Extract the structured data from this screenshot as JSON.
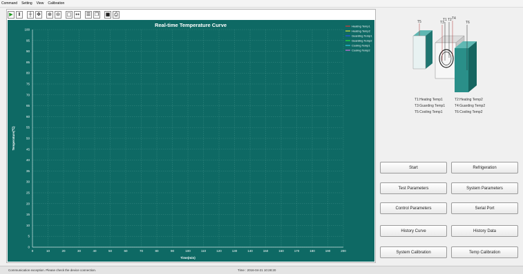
{
  "menu": [
    "Command",
    "Setting",
    "View",
    "Calibration"
  ],
  "toolbar": {
    "buttons": [
      {
        "name": "play-icon",
        "glyph": "▶",
        "color": "#1d9a1d"
      },
      {
        "name": "pause-icon",
        "glyph": "Ⅱ",
        "color": "#222222"
      },
      {
        "name": "crosshair-icon",
        "glyph": "┼",
        "color": "#222222"
      },
      {
        "name": "move-icon",
        "glyph": "✥",
        "color": "#222222"
      },
      {
        "name": "zoom-in-icon",
        "glyph": "⊕",
        "color": "#222222"
      },
      {
        "name": "zoom-out-icon",
        "glyph": "⊖",
        "color": "#222222"
      },
      {
        "name": "select-box-icon",
        "glyph": "□",
        "color": "#222222"
      },
      {
        "name": "fit-width-icon",
        "glyph": "↔",
        "color": "#222222"
      },
      {
        "name": "properties-icon",
        "glyph": "☰",
        "color": "#222222"
      },
      {
        "name": "copy-icon",
        "glyph": "❐",
        "color": "#222222"
      },
      {
        "name": "save-icon",
        "glyph": "■",
        "color": "#222222"
      },
      {
        "name": "print-icon",
        "glyph": "⎙",
        "color": "#222222"
      }
    ]
  },
  "chart_data": {
    "type": "line",
    "title": "Real-time Temperature Curve",
    "xlabel": "Time(min)",
    "ylabel": "Temperature(℃)",
    "xlim": [
      0,
      200
    ],
    "ylim": [
      0,
      100
    ],
    "x_ticks": [
      0,
      10,
      20,
      30,
      40,
      50,
      60,
      70,
      80,
      90,
      100,
      110,
      120,
      130,
      140,
      150,
      160,
      170,
      180,
      190,
      200
    ],
    "y_ticks": [
      0,
      5,
      10,
      15,
      20,
      25,
      30,
      35,
      40,
      45,
      50,
      55,
      60,
      65,
      70,
      75,
      80,
      85,
      90,
      95,
      100
    ],
    "grid": true,
    "legend_position": "top-right",
    "background": "#0e6964",
    "series": [
      {
        "name": "Heating Temp1",
        "color": "#ff3030",
        "x": [],
        "y": []
      },
      {
        "name": "Heating Temp2",
        "color": "#ffff30",
        "x": [],
        "y": []
      },
      {
        "name": "Guarding Temp1",
        "color": "#3050ff",
        "x": [],
        "y": []
      },
      {
        "name": "Guarding Temp2",
        "color": "#30ff30",
        "x": [],
        "y": []
      },
      {
        "name": "Cooling Temp1",
        "color": "#30e0ff",
        "x": [],
        "y": []
      },
      {
        "name": "Cooling Temp2",
        "color": "#ff70ff",
        "x": [],
        "y": []
      }
    ]
  },
  "diagram": {
    "labels": [
      "T5",
      "T3",
      "T1",
      "T2",
      "T4",
      "T6"
    ],
    "legend": [
      [
        "T1:Heating Temp1",
        "T2:Heating Temp2"
      ],
      [
        "T3:Guarding Temp1",
        "T4:Guarding Temp2"
      ],
      [
        "T5:Cooling Temp1",
        "T6:Cooling Temp2"
      ]
    ],
    "plate_color": "#2a8f89"
  },
  "buttons": {
    "start": "Start",
    "refrigeration": "Refrigeration",
    "test_parameters": "Test Parameters",
    "system_parameters": "System Parameters",
    "control_parameters": "Control Parameters",
    "serial_port": "Serial Port",
    "history_curve": "History Curve",
    "history_data": "History Data",
    "system_calibration": "System Calibration",
    "temp_calibration": "Temp Calibration"
  },
  "status": {
    "message": "Communication exception. Please check the device connection.",
    "time": "Time : 2016-04-21  10:28:20"
  }
}
